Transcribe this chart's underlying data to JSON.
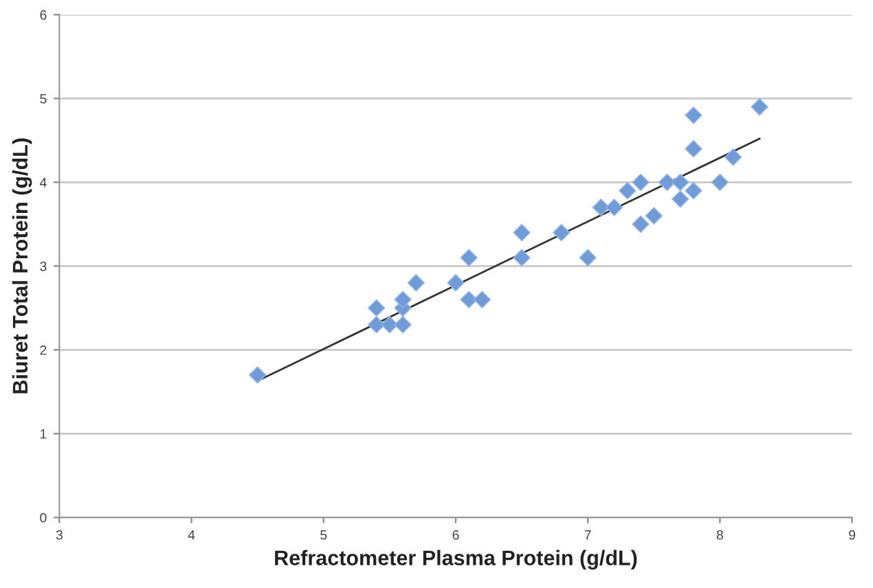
{
  "chart_data": {
    "type": "scatter",
    "xlabel": "Refractometer Plasma Protein (g/dL)",
    "ylabel": "Biuret Total Protein (g/dL)",
    "xlim": [
      3,
      9
    ],
    "xticks": [
      3,
      4,
      5,
      6,
      7,
      8,
      9
    ],
    "ylim": [
      0,
      6
    ],
    "yticks": [
      0,
      1,
      2,
      3,
      4,
      5,
      6
    ],
    "grid": "y",
    "series": [
      {
        "marker": "diamond",
        "color": "#6f9bd8",
        "x": [
          4.5,
          5.4,
          5.4,
          5.5,
          5.6,
          5.6,
          5.6,
          5.7,
          6.0,
          6.1,
          6.1,
          6.2,
          6.5,
          6.5,
          6.8,
          7.0,
          7.1,
          7.2,
          7.3,
          7.4,
          7.4,
          7.5,
          7.6,
          7.7,
          7.7,
          7.8,
          7.8,
          7.8,
          8.0,
          8.1,
          8.3
        ],
        "values": [
          1.7,
          2.5,
          2.3,
          2.3,
          2.3,
          2.5,
          2.6,
          2.8,
          2.8,
          3.1,
          2.6,
          2.6,
          3.4,
          3.1,
          3.4,
          3.1,
          3.7,
          3.7,
          3.9,
          4.0,
          3.5,
          3.6,
          4.0,
          4.0,
          3.8,
          4.8,
          4.4,
          3.9,
          4.0,
          4.3,
          4.9
        ]
      },
      {
        "type": "line",
        "marker": "none",
        "color": "#333333",
        "x": [
          4.5,
          8.3
        ],
        "values": [
          1.63,
          4.52
        ]
      }
    ]
  }
}
